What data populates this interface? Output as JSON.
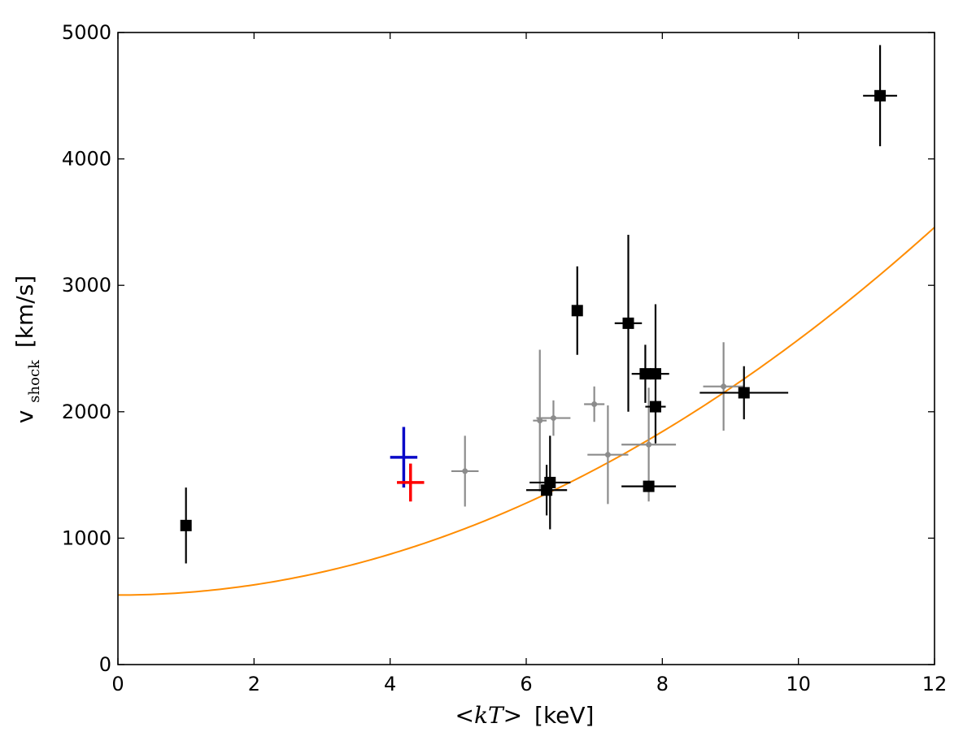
{
  "chart_data": {
    "type": "scatter",
    "title": "",
    "xlabel": "<kT> [keV]",
    "xlabel_parts": {
      "math": "<kT>",
      "unit": "[keV]"
    },
    "ylabel": "v_shock [km/s]",
    "ylabel_parts": {
      "base": "v",
      "subscript": "shock",
      "unit": "[km/s]"
    },
    "xlim": [
      0,
      12
    ],
    "ylim": [
      0,
      5000
    ],
    "xticks": [
      0,
      2,
      4,
      6,
      8,
      10,
      12
    ],
    "yticks": [
      0,
      1000,
      2000,
      3000,
      4000,
      5000
    ],
    "grid": false,
    "colors": {
      "black_series": "#000000",
      "gray_series": "#8c8c8c",
      "blue_point": "#0a0ac8",
      "red_point": "#ff0000",
      "fit_curve": "#ff8c00"
    },
    "series": [
      {
        "name": "black-squares",
        "marker": "square",
        "points": [
          {
            "x": 1.0,
            "y": 1100,
            "xerr": 0.05,
            "yerr": 300
          },
          {
            "x": 6.3,
            "y": 1380,
            "xerr": 0.3,
            "yerr": 200
          },
          {
            "x": 6.35,
            "y": 1440,
            "xerr": 0.3,
            "yerr": 370
          },
          {
            "x": 6.75,
            "y": 2800,
            "xerr": 0.05,
            "yerr": 350
          },
          {
            "x": 7.5,
            "y": 2700,
            "xerr": 0.2,
            "yerr": 700
          },
          {
            "x": 7.75,
            "y": 2300,
            "xerr": 0.2,
            "yerr": 230
          },
          {
            "x": 7.9,
            "y": 2300,
            "xerr": 0.2,
            "yerr": 550
          },
          {
            "x": 7.9,
            "y": 2040,
            "xerr": 0.15,
            "yerr": 0
          },
          {
            "x": 7.8,
            "y": 1410,
            "xerr": 0.4,
            "yerr": 0
          },
          {
            "x": 9.2,
            "y": 2150,
            "xerr": 0.65,
            "yerr": 210
          },
          {
            "x": 11.2,
            "y": 4500,
            "xerr": 0.25,
            "yerr": 400
          }
        ]
      },
      {
        "name": "gray-dots",
        "marker": "dot",
        "points": [
          {
            "x": 5.1,
            "y": 1530,
            "xerr": 0.2,
            "yerr": 280
          },
          {
            "x": 6.2,
            "y": 1930,
            "xerr": 0.1,
            "yerr": 560
          },
          {
            "x": 6.4,
            "y": 1950,
            "xerr": 0.25,
            "yerr": 140
          },
          {
            "x": 7.0,
            "y": 2060,
            "xerr": 0.15,
            "yerr": 140
          },
          {
            "x": 7.2,
            "y": 1660,
            "xerr": 0.3,
            "yerr": 390
          },
          {
            "x": 7.8,
            "y": 1740,
            "xerr": 0.4,
            "yerr": 450
          },
          {
            "x": 8.9,
            "y": 2200,
            "xerr": 0.3,
            "yerr": 350
          }
        ]
      },
      {
        "name": "blue-cross",
        "marker": "none",
        "points": [
          {
            "x": 4.2,
            "y": 1640,
            "xerr": 0.2,
            "yerr": 240
          }
        ]
      },
      {
        "name": "red-cross",
        "marker": "none",
        "points": [
          {
            "x": 4.3,
            "y": 1440,
            "xerr": 0.2,
            "yerr": 150
          }
        ]
      }
    ],
    "fit": {
      "name": "fit-curve",
      "formula": "y = 550 + 20.2 * x^2",
      "a": 550,
      "b": 20.2,
      "x_range": [
        0,
        12
      ]
    }
  }
}
